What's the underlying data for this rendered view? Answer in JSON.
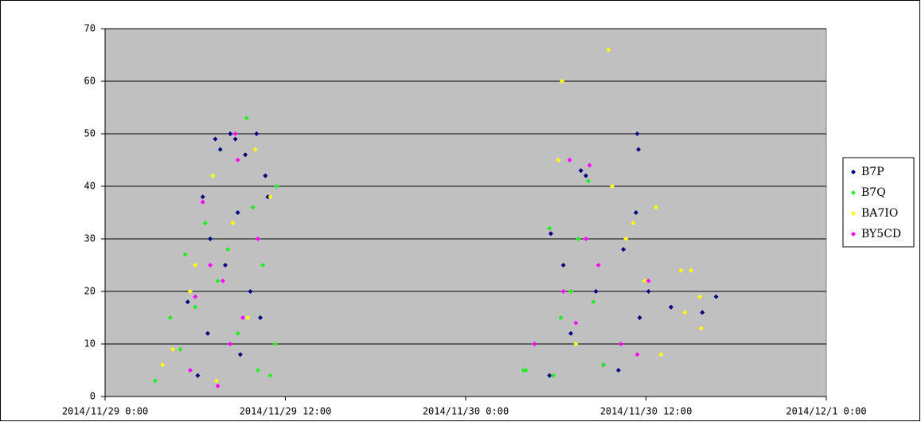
{
  "chart_data": {
    "type": "scatter",
    "xlim": [
      "2014/11/29 0:00",
      "2014/12/1 0:00"
    ],
    "xticks": [
      "2014/11/29 0:00",
      "2014/11/29 12:00",
      "2014/11/30 0:00",
      "2014/11/30 12:00",
      "2014/12/1 0:00"
    ],
    "ylim": [
      0,
      70
    ],
    "yticks": [
      0,
      10,
      20,
      30,
      40,
      50,
      60,
      70
    ],
    "grid": true,
    "legend": "right",
    "series": [
      {
        "name": "B7P",
        "color": "#000080",
        "x": [
          "2014/11/29 7:20",
          "2014/11/29 7:40",
          "2014/11/29 8:20",
          "2014/11/29 8:40",
          "2014/11/29 9:20",
          "2014/11/29 10:05",
          "2014/11/29 10:40",
          "2014/11/29 10:50",
          "2014/11/29 6:10",
          "2014/11/29 6:30",
          "2014/11/29 7:00",
          "2014/11/29 8:00",
          "2014/11/29 8:50",
          "2014/11/29 9:40",
          "2014/11/29 10:20",
          "2014/11/29 6:50",
          "2014/11/29 5:30",
          "2014/11/29 9:00",
          "2014/11/30 5:35",
          "2014/11/30 5:40",
          "2014/11/30 6:30",
          "2014/11/30 7:40",
          "2014/11/30 8:00",
          "2014/11/30 8:40",
          "2014/11/30 9:10",
          "2014/11/30 10:10",
          "2014/11/30 10:30",
          "2014/11/30 11:25",
          "2014/11/30 11:30",
          "2014/11/30 11:20",
          "2014/11/30 11:35",
          "2014/11/30 12:10",
          "2014/11/30 13:40",
          "2014/11/30 15:45",
          "2014/11/30 16:40",
          "2014/11/30 7:00"
        ],
        "values": [
          49,
          47,
          50,
          49,
          46,
          50,
          42,
          38,
          4,
          38,
          30,
          25,
          35,
          20,
          15,
          12,
          18,
          8,
          4,
          31,
          25,
          43,
          42,
          20,
          6,
          5,
          28,
          50,
          47,
          35,
          15,
          20,
          17,
          16,
          19,
          12
        ]
      },
      {
        "name": "B7Q",
        "color": "#22ee22",
        "x": [
          "2014/11/29 3:20",
          "2014/11/29 4:20",
          "2014/11/29 5:20",
          "2014/11/29 9:25",
          "2014/11/29 11:00",
          "2014/11/29 11:20",
          "2014/11/29 11:25",
          "2014/11/29 6:00",
          "2014/11/29 6:40",
          "2014/11/29 7:30",
          "2014/11/29 8:10",
          "2014/11/29 8:50",
          "2014/11/29 9:50",
          "2014/11/29 10:30",
          "2014/11/29 5:00",
          "2014/11/29 10:10",
          "2014/11/30 3:50",
          "2014/11/30 4:00",
          "2014/11/30 4:35",
          "2014/11/30 5:35",
          "2014/11/30 8:10",
          "2014/11/30 9:10",
          "2014/11/30 5:50",
          "2014/11/30 6:20",
          "2014/11/30 7:00",
          "2014/11/30 7:30",
          "2014/11/30 8:30"
        ],
        "values": [
          3,
          15,
          27,
          53,
          4,
          10,
          40,
          17,
          33,
          22,
          28,
          12,
          36,
          25,
          9,
          5,
          5,
          5,
          10,
          32,
          41,
          6,
          4,
          15,
          20,
          30,
          18
        ]
      },
      {
        "name": "BA7IO",
        "color": "#ffff00",
        "x": [
          "2014/11/29 3:50",
          "2014/11/29 4:30",
          "2014/11/29 7:10",
          "2014/11/29 10:00",
          "2014/11/29 11:00",
          "2014/11/29 7:25",
          "2014/11/29 6:00",
          "2014/11/29 8:30",
          "2014/11/29 9:30",
          "2014/11/29 5:40",
          "2014/11/30 6:25",
          "2014/11/30 9:30",
          "2014/11/30 6:10",
          "2014/11/30 14:20",
          "2014/11/30 15:00",
          "2014/11/30 15:35",
          "2014/11/30 15:40",
          "2014/11/30 14:35",
          "2014/11/30 12:40",
          "2014/11/30 13:00",
          "2014/11/30 11:55",
          "2014/11/30 9:45",
          "2014/11/30 10:40",
          "2014/11/30 11:10",
          "2014/11/30 7:20"
        ],
        "values": [
          6,
          9,
          42,
          47,
          38,
          3,
          25,
          33,
          15,
          20,
          60,
          66,
          45,
          24,
          24,
          19,
          13,
          16,
          36,
          8,
          22,
          40,
          30,
          33,
          10
        ]
      },
      {
        "name": "BY5CD",
        "color": "#ff00ff",
        "x": [
          "2014/11/29 5:40",
          "2014/11/29 7:30",
          "2014/11/29 8:40",
          "2014/11/29 8:50",
          "2014/11/29 6:30",
          "2014/11/29 6:00",
          "2014/11/29 10:10",
          "2014/11/29 8:20",
          "2014/11/29 7:00",
          "2014/11/29 9:10",
          "2014/11/29 7:50",
          "2014/11/30 4:35",
          "2014/11/30 6:55",
          "2014/11/30 8:15",
          "2014/11/30 10:20",
          "2014/11/30 11:25",
          "2014/11/30 12:10",
          "2014/11/30 8:00",
          "2014/11/30 6:30",
          "2014/11/30 7:20",
          "2014/11/30 8:50"
        ],
        "values": [
          5,
          2,
          50,
          45,
          37,
          19,
          30,
          10,
          25,
          15,
          22,
          10,
          45,
          44,
          10,
          8,
          22,
          30,
          20,
          14,
          25
        ]
      }
    ]
  }
}
